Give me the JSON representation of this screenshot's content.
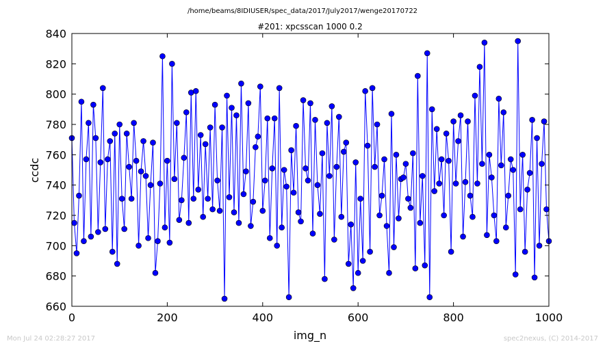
{
  "figure": {
    "path_title": "/home/beams/8IDIUSER/spec_data/2017/July2017/wenge20170722",
    "timestamp": "Mon Jul 24 02:28:27 2017",
    "credit": "spec2nexus, (C) 2014-2017"
  },
  "chart_data": {
    "type": "line",
    "title": "#201: xpcsscan 1000 0.2",
    "xlabel": "img_n",
    "ylabel": "ccdc",
    "xlim": [
      0,
      1000
    ],
    "ylim": [
      660,
      840
    ],
    "x_ticks": [
      "0",
      "200",
      "400",
      "600",
      "800",
      "1000"
    ],
    "y_ticks": [
      "660",
      "680",
      "700",
      "720",
      "740",
      "760",
      "780",
      "800",
      "820",
      "840"
    ],
    "grid": false,
    "series": [
      {
        "color": "#0000ff",
        "marker": "circle",
        "x": [
          0,
          5,
          10,
          15,
          20,
          25,
          30,
          35,
          40,
          45,
          50,
          55,
          60,
          65,
          70,
          75,
          80,
          85,
          90,
          95,
          100,
          105,
          110,
          115,
          120,
          125,
          130,
          135,
          140,
          145,
          150,
          155,
          160,
          165,
          170,
          175,
          180,
          185,
          190,
          195,
          200,
          205,
          210,
          215,
          220,
          225,
          230,
          235,
          240,
          245,
          250,
          255,
          260,
          265,
          270,
          275,
          280,
          285,
          290,
          295,
          300,
          305,
          310,
          315,
          320,
          325,
          330,
          335,
          340,
          345,
          350,
          355,
          360,
          365,
          370,
          375,
          380,
          385,
          390,
          395,
          400,
          405,
          410,
          415,
          420,
          425,
          430,
          435,
          440,
          445,
          450,
          455,
          460,
          465,
          470,
          475,
          480,
          485,
          490,
          495,
          500,
          505,
          510,
          515,
          520,
          525,
          530,
          535,
          540,
          545,
          550,
          555,
          560,
          565,
          570,
          575,
          580,
          585,
          590,
          595,
          600,
          605,
          610,
          615,
          620,
          625,
          630,
          635,
          640,
          645,
          650,
          655,
          660,
          665,
          670,
          675,
          680,
          685,
          690,
          695,
          700,
          705,
          710,
          715,
          720,
          725,
          730,
          735,
          740,
          745,
          750,
          755,
          760,
          765,
          770,
          775,
          780,
          785,
          790,
          795,
          800,
          805,
          810,
          815,
          820,
          825,
          830,
          835,
          840,
          845,
          850,
          855,
          860,
          865,
          870,
          875,
          880,
          885,
          890,
          895,
          900,
          905,
          910,
          915,
          920,
          925,
          930,
          935,
          940,
          945,
          950,
          955,
          960,
          965,
          970,
          975,
          980,
          985,
          990,
          995,
          1000
        ],
        "y": [
          771,
          715,
          695,
          733,
          795,
          703,
          757,
          781,
          706,
          793,
          771,
          709,
          755,
          804,
          711,
          757,
          769,
          696,
          774,
          688,
          780,
          731,
          711,
          774,
          752,
          731,
          781,
          756,
          700,
          749,
          769,
          746,
          705,
          740,
          768,
          682,
          703,
          741,
          825,
          712,
          756,
          702,
          820,
          744,
          781,
          717,
          730,
          758,
          788,
          715,
          801,
          731,
          802,
          737,
          773,
          719,
          767,
          731,
          778,
          724,
          793,
          743,
          723,
          778,
          665,
          799,
          732,
          791,
          722,
          786,
          715,
          807,
          734,
          749,
          794,
          713,
          729,
          765,
          772,
          805,
          723,
          743,
          784,
          705,
          751,
          784,
          700,
          804,
          712,
          750,
          739,
          666,
          763,
          735,
          779,
          722,
          716,
          796,
          751,
          743,
          794,
          708,
          783,
          740,
          721,
          761,
          678,
          781,
          746,
          792,
          704,
          752,
          785,
          719,
          762,
          768,
          688,
          714,
          672,
          755,
          682,
          731,
          690,
          802,
          766,
          696,
          804,
          752,
          780,
          720,
          733,
          757,
          713,
          682,
          787,
          699,
          760,
          718,
          744,
          745,
          754,
          731,
          725,
          761,
          685,
          812,
          715,
          746,
          687,
          827,
          666,
          790,
          736,
          777,
          741,
          757,
          720,
          774,
          756,
          696,
          782,
          741,
          769,
          786,
          706,
          742,
          782,
          733,
          719,
          799,
          741,
          818,
          754,
          834,
          707,
          760,
          745,
          720,
          703,
          797,
          753,
          788,
          712,
          733,
          757,
          750,
          681,
          835,
          724,
          760,
          696,
          737,
          748,
          783,
          679,
          771,
          700,
          754,
          782,
          724,
          703
        ]
      }
    ]
  }
}
